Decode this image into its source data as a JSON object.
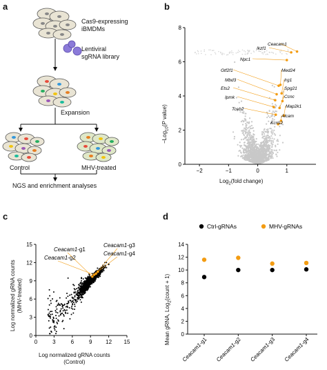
{
  "panels": {
    "a": {
      "letter": "a",
      "step1": "Cas9-expressing\niBMDMs",
      "step1_line1": "Cas9-expressing",
      "step1_line2": "iBMDMs",
      "lib_line1": "Lentiviral",
      "lib_line2": "sgRNA library",
      "expansion": "Expansion",
      "control": "Control",
      "treated": "MHV-treated",
      "analysis": "NGS and enrichment analyses"
    },
    "b": {
      "letter": "b",
      "ylabel_pre": "−Log",
      "ylabel_sub": "10",
      "ylabel_mid": "(",
      "ylabel_italic": "P",
      "ylabel_post": " value)",
      "xlabel_pre": "Log",
      "xlabel_sub": "2",
      "xlabel_post": "(fold change)"
    },
    "c": {
      "letter": "c",
      "ylabel_line1": "Log normalized gRNA counts",
      "ylabel_line2": "(MHV-treated)",
      "xlabel_line1": "Log normalized gRNA counts",
      "xlabel_line2": "(Control)"
    },
    "d": {
      "letter": "d",
      "ylabel_pre": "Mean gRNA, Log",
      "ylabel_sub": "2",
      "ylabel_post": "(count + 1)"
    }
  },
  "colors": {
    "gray_points": "#c8c8c8",
    "highlight": "#f39c12",
    "ctrl": "#000000",
    "mhv": "#f39c12",
    "axis": "#111111"
  },
  "chart_data": [
    {
      "id": "b",
      "type": "scatter",
      "xlim": [
        -2.5,
        2.0
      ],
      "ylim": [
        0,
        8
      ],
      "xticks": [
        -2,
        -1,
        0,
        1
      ],
      "yticks": [
        0,
        2,
        4,
        6,
        8
      ],
      "xtick_labels": [
        "−2",
        "−1",
        "0",
        "1"
      ],
      "ytick_labels": [
        "0",
        "2",
        "4",
        "6",
        "8"
      ],
      "highlighted": [
        {
          "gene": "Ceacam1",
          "x": 1.35,
          "y": 6.6
        },
        {
          "gene": "Ikzf1",
          "x": 1.15,
          "y": 6.55
        },
        {
          "gene": "Npc1",
          "x": 1.0,
          "y": 6.1
        },
        {
          "gene": "Gtf2f1",
          "x": 0.72,
          "y": 4.6
        },
        {
          "gene": "Med24",
          "x": 0.78,
          "y": 4.65
        },
        {
          "gene": "Mbd3",
          "x": 0.65,
          "y": 4.1
        },
        {
          "gene": "Irg1",
          "x": 0.82,
          "y": 4.15
        },
        {
          "gene": "Ets2",
          "x": 0.6,
          "y": 3.75
        },
        {
          "gene": "Spg21",
          "x": 0.85,
          "y": 3.7
        },
        {
          "gene": "Ipmk",
          "x": 0.55,
          "y": 3.35
        },
        {
          "gene": "Ccnc",
          "x": 0.75,
          "y": 3.3
        },
        {
          "gene": "Tceb2",
          "x": 0.62,
          "y": 2.9
        },
        {
          "gene": "Map2k1",
          "x": 0.9,
          "y": 2.85
        },
        {
          "gene": "Alcam",
          "x": 0.8,
          "y": 2.55
        },
        {
          "gene": "Kcns2",
          "x": 0.7,
          "y": 2.35
        }
      ]
    },
    {
      "id": "c",
      "type": "scatter",
      "xlim": [
        0,
        15
      ],
      "ylim": [
        0,
        15
      ],
      "xticks": [
        0,
        3,
        6,
        9,
        12,
        15
      ],
      "yticks": [
        0,
        3,
        6,
        9,
        12,
        15
      ],
      "annotations": [
        {
          "gene": "Ceacam1",
          "suffix": "-g1",
          "x": 9.3,
          "y": 9.7
        },
        {
          "gene": "Ceacam1",
          "suffix": "-g2",
          "x": 9.6,
          "y": 10.0
        },
        {
          "gene": "Ceacam1",
          "suffix": "-g3",
          "x": 9.9,
          "y": 10.2
        },
        {
          "gene": "Ceacam1",
          "suffix": "-g4",
          "x": 10.2,
          "y": 10.5
        }
      ]
    },
    {
      "id": "d",
      "type": "scatter",
      "categories": [
        "Ceacam1-g1",
        "Ceacam1-g2",
        "Ceacam1-g3",
        "Ceacam1-g4"
      ],
      "categories_italic": [
        "Ceacam1",
        "Ceacam1",
        "Ceacam1",
        "Ceacam1"
      ],
      "categories_suffix": [
        "-g1",
        "-g2",
        "-g3",
        "-g4"
      ],
      "ylim": [
        0,
        14
      ],
      "yticks": [
        0,
        2,
        4,
        6,
        8,
        10,
        12,
        14
      ],
      "series": [
        {
          "name": "Ctrl-gRNAs",
          "values": [
            8.9,
            10.0,
            10.0,
            10.1
          ]
        },
        {
          "name": "MHV-gRNAs",
          "values": [
            11.6,
            11.9,
            11.0,
            11.1
          ]
        }
      ],
      "legend_position": "top"
    }
  ]
}
